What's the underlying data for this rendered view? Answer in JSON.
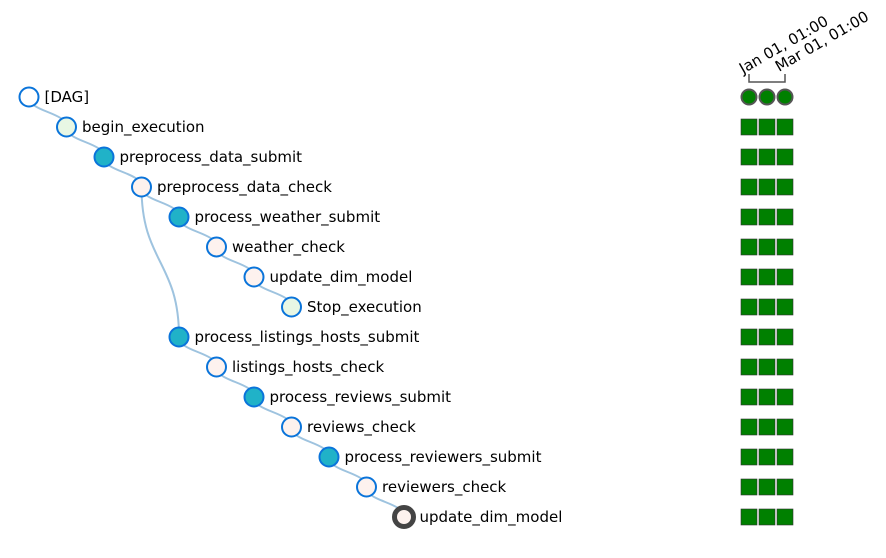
{
  "dates": [
    "Jan 01, 01:00",
    "Mar 01, 01:00"
  ],
  "colors": {
    "success": "#008000",
    "edge": "#9ec3df",
    "node_stroke": "#0a74da",
    "selected_stroke": "#444444",
    "fill_dag": "#ffffff",
    "fill_dummy": "#e8f7e4",
    "fill_submit": "#20b2c8",
    "fill_sensor": "#fdf2ee"
  },
  "tasks": [
    {
      "label": "[DAG]",
      "depth": 0,
      "parent": null,
      "kind": "dag",
      "runs": [
        "success",
        "success",
        "success"
      ]
    },
    {
      "label": "begin_execution",
      "depth": 1,
      "parent": 0,
      "kind": "dummy",
      "runs": [
        "success",
        "success",
        "success"
      ]
    },
    {
      "label": "preprocess_data_submit",
      "depth": 2,
      "parent": 1,
      "kind": "submit",
      "runs": [
        "success",
        "success",
        "success"
      ]
    },
    {
      "label": "preprocess_data_check",
      "depth": 3,
      "parent": 2,
      "kind": "sensor",
      "runs": [
        "success",
        "success",
        "success"
      ]
    },
    {
      "label": "process_weather_submit",
      "depth": 4,
      "parent": 3,
      "kind": "submit",
      "runs": [
        "success",
        "success",
        "success"
      ]
    },
    {
      "label": "weather_check",
      "depth": 5,
      "parent": 4,
      "kind": "sensor",
      "runs": [
        "success",
        "success",
        "success"
      ]
    },
    {
      "label": "update_dim_model",
      "depth": 6,
      "parent": 5,
      "kind": "sensor",
      "runs": [
        "success",
        "success",
        "success"
      ]
    },
    {
      "label": "Stop_execution",
      "depth": 7,
      "parent": 6,
      "kind": "dummy",
      "runs": [
        "success",
        "success",
        "success"
      ]
    },
    {
      "label": "process_listings_hosts_submit",
      "depth": 4,
      "parent": 3,
      "kind": "submit",
      "runs": [
        "success",
        "success",
        "success"
      ]
    },
    {
      "label": "listings_hosts_check",
      "depth": 5,
      "parent": 8,
      "kind": "sensor",
      "runs": [
        "success",
        "success",
        "success"
      ]
    },
    {
      "label": "process_reviews_submit",
      "depth": 6,
      "parent": 9,
      "kind": "submit",
      "runs": [
        "success",
        "success",
        "success"
      ]
    },
    {
      "label": "reviews_check",
      "depth": 7,
      "parent": 10,
      "kind": "sensor",
      "runs": [
        "success",
        "success",
        "success"
      ]
    },
    {
      "label": "process_reviewers_submit",
      "depth": 8,
      "parent": 11,
      "kind": "submit",
      "runs": [
        "success",
        "success",
        "success"
      ]
    },
    {
      "label": "reviewers_check",
      "depth": 9,
      "parent": 12,
      "kind": "sensor",
      "runs": [
        "success",
        "success",
        "success"
      ]
    },
    {
      "label": "update_dim_model",
      "depth": 10,
      "parent": 13,
      "kind": "sensor",
      "selected": true,
      "runs": [
        "success",
        "success",
        "success"
      ]
    }
  ]
}
